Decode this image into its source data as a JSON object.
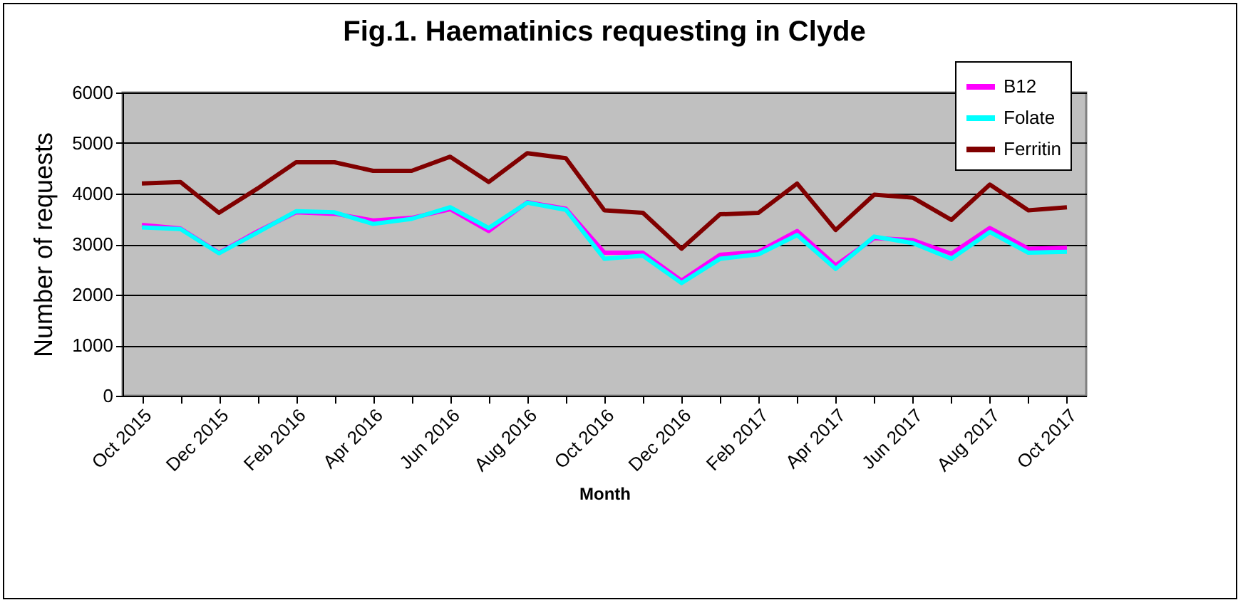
{
  "chart_data": {
    "type": "line",
    "title": "Fig.1. Haematinics requesting in Clyde",
    "xlabel": "Month",
    "ylabel": "Number of requests",
    "categories": [
      "Oct 2015",
      null,
      "Dec 2015",
      null,
      "Feb 2016",
      null,
      "Apr 2016",
      null,
      "Jun 2016",
      null,
      "Aug 2016",
      null,
      "Oct 2016",
      null,
      "Dec 2016",
      null,
      "Feb 2017",
      null,
      "Apr 2017",
      null,
      "Jun 2017",
      null,
      "Aug 2017",
      null,
      "Oct 2017"
    ],
    "series": [
      {
        "name": "B12",
        "color": "#ff00ff",
        "values": [
          3380,
          3310,
          2830,
          3250,
          3630,
          3600,
          3470,
          3520,
          3690,
          3260,
          3830,
          3700,
          2830,
          2830,
          2280,
          2790,
          2850,
          3260,
          2580,
          3120,
          3080,
          2810,
          3320,
          2910,
          2930
        ]
      },
      {
        "name": "Folate",
        "color": "#00ffff",
        "values": [
          3330,
          3300,
          2820,
          3230,
          3650,
          3630,
          3400,
          3500,
          3730,
          3320,
          3820,
          3680,
          2710,
          2770,
          2230,
          2710,
          2800,
          3180,
          2510,
          3150,
          3020,
          2710,
          3240,
          2830,
          2850
        ]
      },
      {
        "name": "Ferritin",
        "color": "#800000",
        "values": [
          4200,
          4230,
          3620,
          4100,
          4620,
          4620,
          4450,
          4450,
          4730,
          4230,
          4800,
          4700,
          3670,
          3620,
          2910,
          3590,
          3620,
          4200,
          3280,
          3980,
          3920,
          3480,
          4180,
          3670,
          3730
        ]
      }
    ],
    "ylim": [
      0,
      6000
    ],
    "yticks": [
      0,
      1000,
      2000,
      3000,
      4000,
      5000,
      6000
    ],
    "grid": "y",
    "legend": "top right",
    "marker": "none",
    "line_style": "solid"
  }
}
